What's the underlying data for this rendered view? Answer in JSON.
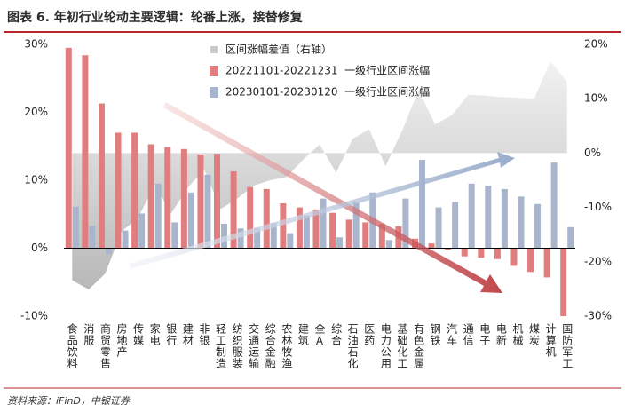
{
  "chart_data": {
    "type": "bar",
    "title": "图表 6. 年初行业轮动主要逻辑：轮番上涨，接替修复",
    "source": "资料来源：iFinD，中银证券",
    "categories": [
      "食品饮料",
      "消服",
      "商贸零售",
      "房地产",
      "传媒",
      "家电",
      "银行",
      "建材",
      "非银",
      "轻工制造",
      "纺织服装",
      "交通运输",
      "综合金融",
      "农林牧渔",
      "建筑",
      "全A",
      "综合",
      "石油石化",
      "医药",
      "电力公用",
      "基础化工",
      "有色金属",
      "钢铁",
      "汽车",
      "通信",
      "电子",
      "电新",
      "机械",
      "煤炭",
      "计算机",
      "国防军工"
    ],
    "series": [
      {
        "name": "区间涨幅差值（右轴）",
        "type": "area",
        "axis": "y2",
        "color": "#c9c9c9",
        "values": [
          -23.4,
          -25.1,
          -22.2,
          -14.4,
          -11.9,
          -5.8,
          -11.1,
          -6.4,
          -3.0,
          -10.3,
          -8.4,
          -6.0,
          -5.0,
          -4.4,
          -1.2,
          1.6,
          -3.6,
          2.6,
          4.4,
          -2.4,
          4.1,
          11.6,
          5.3,
          6.9,
          10.7,
          10.6,
          10.3,
          10.2,
          10.0,
          16.9,
          13.1
        ]
      },
      {
        "name": "20221101-20221231  一级行业区间涨幅",
        "type": "bar",
        "color": "#e07d7f",
        "values": [
          29.5,
          28.4,
          21.3,
          17.0,
          17.0,
          15.3,
          14.9,
          14.6,
          13.8,
          13.9,
          11.3,
          9.0,
          8.7,
          6.6,
          6.0,
          5.7,
          5.2,
          4.2,
          3.8,
          3.6,
          3.2,
          1.4,
          0.7,
          -0.2,
          -1.2,
          -1.4,
          -1.6,
          -2.6,
          -3.5,
          -4.3,
          -10.0
        ]
      },
      {
        "name": "20230101-20230120  一级行业区间涨幅",
        "type": "bar",
        "color": "#a9b5cc",
        "values": [
          6.1,
          3.3,
          -0.9,
          2.6,
          5.1,
          9.5,
          3.8,
          8.2,
          10.8,
          3.6,
          2.9,
          3.0,
          3.7,
          2.2,
          4.8,
          7.3,
          1.6,
          6.8,
          8.2,
          1.2,
          7.3,
          13.0,
          6.0,
          6.8,
          9.5,
          9.2,
          8.7,
          7.6,
          6.5,
          12.6,
          3.1
        ]
      }
    ],
    "ylim": [
      -10,
      30
    ],
    "yticks": [
      {
        "value": -10,
        "label": "-10%"
      },
      {
        "value": 0,
        "label": "0%"
      },
      {
        "value": 10,
        "label": "10%"
      },
      {
        "value": 20,
        "label": "20%"
      },
      {
        "value": 30,
        "label": "30%"
      }
    ],
    "y2lim": [
      -30,
      20
    ],
    "y2ticks": [
      {
        "value": -30,
        "label": "-30%"
      },
      {
        "value": -20,
        "label": "-20%"
      },
      {
        "value": -10,
        "label": "-10%"
      },
      {
        "value": 0,
        "label": "0%"
      },
      {
        "value": 10,
        "label": "10%"
      },
      {
        "value": 20,
        "label": "20%"
      }
    ],
    "grid": false,
    "legend": "top-left"
  }
}
